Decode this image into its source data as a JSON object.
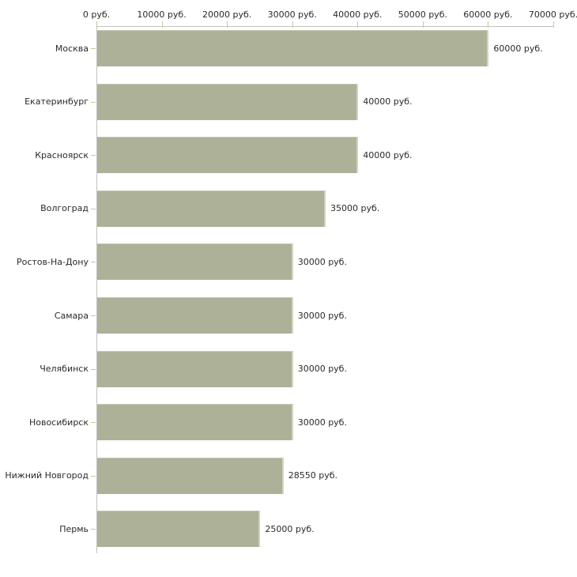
{
  "chart_data": {
    "type": "bar",
    "orientation": "horizontal",
    "title": "",
    "xlabel": "",
    "ylabel": "",
    "categories": [
      "Москва",
      "Екатеринбург",
      "Красноярск",
      "Волгоград",
      "Ростов-На-Дону",
      "Самара",
      "Челябинск",
      "Новосибирск",
      "Нижний Новгород",
      "Пермь"
    ],
    "values": [
      60000,
      40000,
      40000,
      35000,
      30000,
      30000,
      30000,
      30000,
      28550,
      25000
    ],
    "value_labels": [
      "60000 руб.",
      "40000 руб.",
      "40000 руб.",
      "35000 руб.",
      "30000 руб.",
      "30000 руб.",
      "30000 руб.",
      "30000 руб.",
      "28550 руб.",
      "25000 руб."
    ],
    "x_ticks": [
      "0 руб.",
      "10000 руб.",
      "20000 руб.",
      "30000 руб.",
      "40000 руб.",
      "50000 руб.",
      "60000 руб.",
      "70000 руб."
    ],
    "x_tick_values": [
      0,
      10000,
      20000,
      30000,
      40000,
      50000,
      60000,
      70000
    ],
    "xlim": [
      0,
      70000
    ],
    "grid": "off",
    "legend": "none",
    "colors": {
      "bar_fill": "#acb198",
      "bar_highlight": "#c6c9b4",
      "bar_right_edge": "#d2d4c2",
      "axis_line": "#c1c1c1",
      "tick_mark": "#c9c79b",
      "text": "#2a2a2a",
      "background": "#ffffff"
    }
  }
}
